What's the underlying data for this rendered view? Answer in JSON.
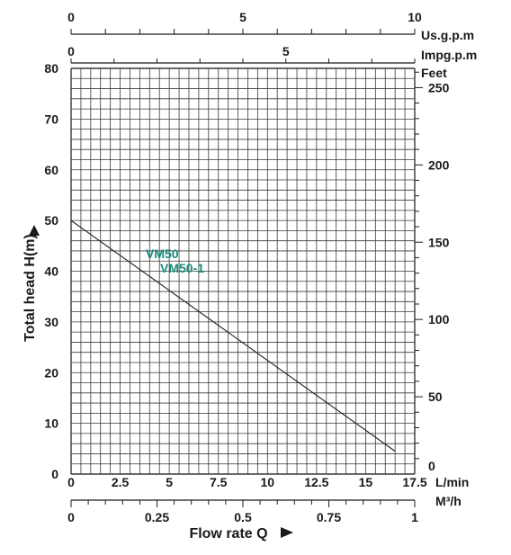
{
  "chart_data": {
    "type": "line",
    "title": "",
    "xlabel": "Flow rate Q",
    "ylabel": "Total head H(m)",
    "xlim": [
      0,
      17.5
    ],
    "ylim": [
      0,
      80
    ],
    "grid": true,
    "x_ticks": [
      "0",
      "2.5",
      "5",
      "7.5",
      "10",
      "12.5",
      "15",
      "17.5"
    ],
    "y_ticks": [
      "0",
      "10",
      "20",
      "30",
      "40",
      "50",
      "60",
      "70",
      "80"
    ],
    "x_unit": "L/min",
    "series": [
      {
        "name": "VM50",
        "x": [
          0,
          16.5
        ],
        "y": [
          50,
          4.5
        ]
      },
      {
        "name": "VM50-1",
        "x": [
          0,
          16.5
        ],
        "y": [
          50,
          4.5
        ]
      }
    ],
    "series_color": "#1a8a7a",
    "secondary_axes": {
      "right_feet": {
        "unit": "Feet",
        "ticks": [
          "0",
          "50",
          "100",
          "150",
          "200",
          "250"
        ]
      },
      "top_usgpm": {
        "unit": "Us.g.p.m",
        "ticks": [
          "0",
          "5",
          "10"
        ],
        "max": 10
      },
      "top_impgpm": {
        "unit": "Impg.p.m",
        "ticks": [
          "0",
          "5"
        ],
        "max": 8
      },
      "bottom_m3h": {
        "unit": "M³/h",
        "ticks": [
          "0",
          "0.25",
          "0.5",
          "0.75",
          "1"
        ],
        "max": 1
      }
    }
  }
}
